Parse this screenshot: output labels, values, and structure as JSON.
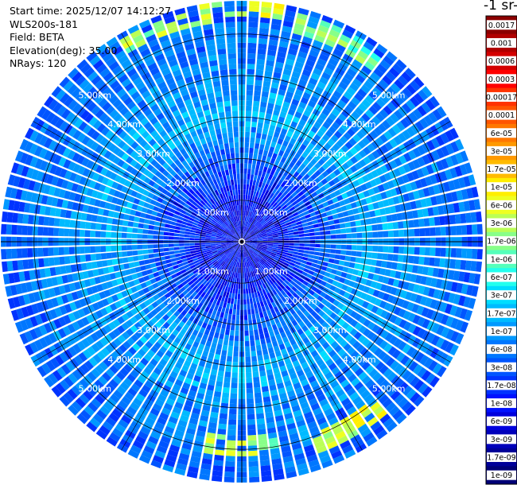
{
  "header": {
    "start_time": "Start time: 2025/12/07 14:12:27",
    "device": "WLS200s-181",
    "field": "Field: BETA",
    "elevation": "Elevation(deg): 35.00",
    "nrays": "NRays: 120"
  },
  "colorbar": {
    "title": "-1 sr-",
    "ticks": [
      "0.0017",
      "0.001",
      "0.0006",
      "0.0003",
      "0.00017",
      "0.0001",
      "6e-05",
      "3e-05",
      "1.7e-05",
      "1e-05",
      "6e-06",
      "3e-06",
      "1.7e-06",
      "1e-06",
      "6e-07",
      "3e-07",
      "1.7e-07",
      "1e-07",
      "6e-08",
      "3e-08",
      "1.7e-08",
      "1e-08",
      "6e-09",
      "3e-09",
      "1.7e-09",
      "1e-09"
    ],
    "colors": [
      "#8b0000",
      "#b00000",
      "#d40000",
      "#ff0000",
      "#ff3300",
      "#ff5500",
      "#ff7700",
      "#ff9900",
      "#ffbb00",
      "#ffee00",
      "#eeff22",
      "#bbff55",
      "#88ff88",
      "#55ffbb",
      "#22ffee",
      "#00ddff",
      "#00bbff",
      "#0099ff",
      "#0077ff",
      "#0055ff",
      "#0033ff",
      "#0011ff",
      "#0000dd",
      "#0000bb",
      "#000099",
      "#000077"
    ]
  },
  "chart_data": {
    "type": "heatmap",
    "projection": "polar (PPI)",
    "field": "BETA",
    "elevation_deg": 35.0,
    "n_rays": 120,
    "range_rings_km": [
      1,
      2,
      3,
      4,
      5
    ],
    "range_labels": [
      "1.00km",
      "2.00km",
      "3.00km",
      "4.00km",
      "5.00km"
    ],
    "max_range_km": 5.8,
    "color_scale": "log",
    "value_range": [
      1e-09,
      0.0017
    ],
    "radial_profile": [
      {
        "range_km": 0.0,
        "beta": 1e-08
      },
      {
        "range_km": 1.0,
        "beta": 1.2e-08
      },
      {
        "range_km": 2.0,
        "beta": 4e-08
      },
      {
        "range_km": 2.5,
        "beta": 8e-08
      },
      {
        "range_km": 3.0,
        "beta": 1.5e-07
      },
      {
        "range_km": 3.5,
        "beta": 1.1e-07
      },
      {
        "range_km": 4.0,
        "beta": 9e-08
      },
      {
        "range_km": 5.0,
        "beta": 6e-08
      },
      {
        "range_km": 5.8,
        "beta": 4e-08
      }
    ],
    "features": [
      {
        "azimuth_deg": 0,
        "range_km": 5.6,
        "beta": 3e-06
      },
      {
        "azimuth_deg": 340,
        "range_km": 5.5,
        "beta": 2e-06
      },
      {
        "azimuth_deg": 25,
        "range_km": 5.4,
        "beta": 1.5e-06
      },
      {
        "azimuth_deg": 150,
        "range_km": 5.2,
        "beta": 5e-06
      },
      {
        "azimuth_deg": 180,
        "range_km": 4.9,
        "beta": 2e-06
      }
    ]
  }
}
